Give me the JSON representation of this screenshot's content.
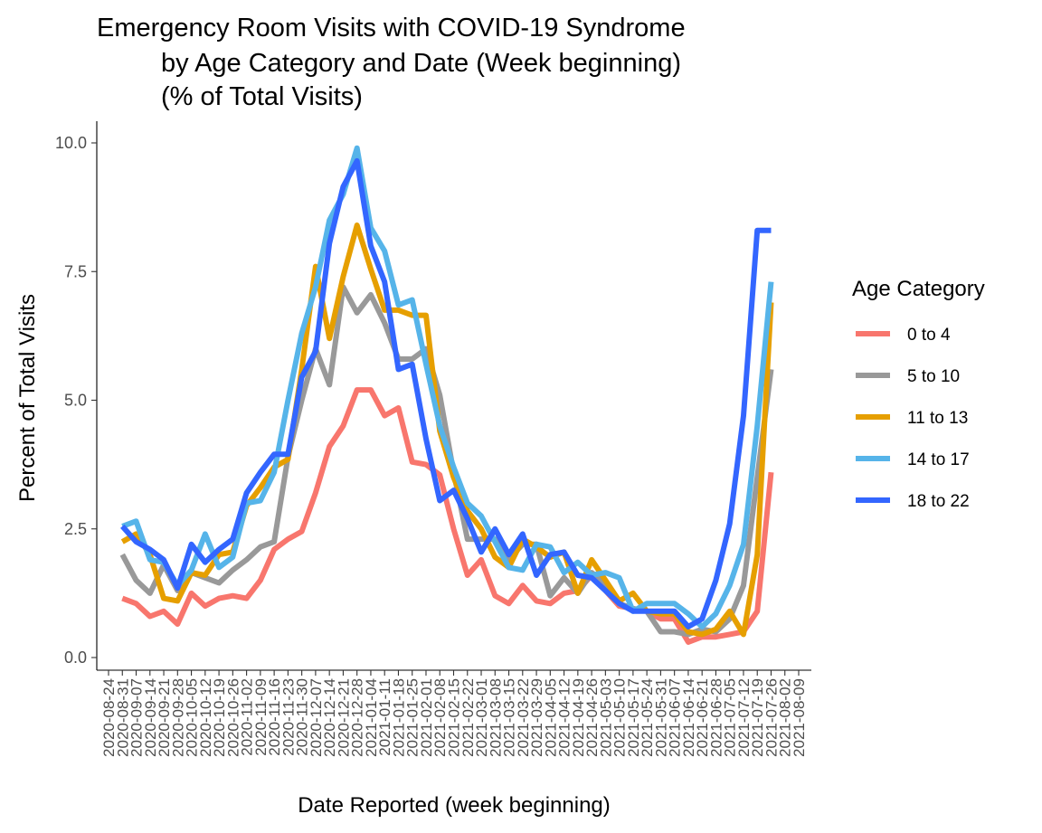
{
  "chart_data": {
    "type": "line",
    "title": [
      "Emergency Room Visits with COVID-19 Syndrome",
      "by Age Category and Date (Week beginning)",
      "(% of Total Visits)"
    ],
    "xlabel": "Date Reported (week beginning)",
    "ylabel": "Percent of Total Visits",
    "ylim": [
      0,
      10
    ],
    "yticks": [
      "0.0",
      "2.5",
      "5.0",
      "7.5",
      "10.0"
    ],
    "grid": false,
    "legend": {
      "title": "Age Category",
      "position": "right"
    },
    "x_tick_labels": [
      "2020-08-24",
      "2020-08-31",
      "2020-09-07",
      "2020-09-14",
      "2020-09-21",
      "2020-09-28",
      "2020-10-05",
      "2020-10-12",
      "2020-10-19",
      "2020-10-26",
      "2020-11-02",
      "2020-11-09",
      "2020-11-16",
      "2020-11-23",
      "2020-11-30",
      "2020-12-07",
      "2020-12-14",
      "2020-12-21",
      "2020-12-28",
      "2021-01-04",
      "2021-01-11",
      "2021-01-18",
      "2021-01-25",
      "2021-02-01",
      "2021-02-08",
      "2021-02-15",
      "2021-02-22",
      "2021-03-01",
      "2021-03-08",
      "2021-03-15",
      "2021-03-22",
      "2021-03-29",
      "2021-04-05",
      "2021-04-12",
      "2021-04-19",
      "2021-04-26",
      "2021-05-03",
      "2021-05-10",
      "2021-05-17",
      "2021-05-24",
      "2021-05-31",
      "2021-06-07",
      "2021-06-14",
      "2021-06-21",
      "2021-06-28",
      "2021-07-05",
      "2021-07-12",
      "2021-07-19",
      "2021-07-26",
      "2021-08-02",
      "2021-08-09"
    ],
    "x": [
      "2020-08-31",
      "2020-09-07",
      "2020-09-14",
      "2020-09-21",
      "2020-09-28",
      "2020-10-05",
      "2020-10-12",
      "2020-10-19",
      "2020-10-26",
      "2020-11-02",
      "2020-11-09",
      "2020-11-16",
      "2020-11-23",
      "2020-11-30",
      "2020-12-07",
      "2020-12-14",
      "2020-12-21",
      "2020-12-28",
      "2021-01-04",
      "2021-01-11",
      "2021-01-18",
      "2021-01-25",
      "2021-02-01",
      "2021-02-08",
      "2021-02-15",
      "2021-02-22",
      "2021-03-01",
      "2021-03-08",
      "2021-03-15",
      "2021-03-22",
      "2021-03-29",
      "2021-04-05",
      "2021-04-12",
      "2021-04-19",
      "2021-04-26",
      "2021-05-03",
      "2021-05-10",
      "2021-05-17",
      "2021-05-24",
      "2021-05-31",
      "2021-06-07",
      "2021-06-14",
      "2021-06-21",
      "2021-06-28",
      "2021-07-05",
      "2021-07-12",
      "2021-07-19",
      "2021-07-26"
    ],
    "series": [
      {
        "name": "0 to 4",
        "color": "#F8766D",
        "values": [
          1.15,
          1.05,
          0.8,
          0.9,
          0.65,
          1.25,
          1.0,
          1.15,
          1.2,
          1.15,
          1.5,
          2.1,
          2.3,
          2.45,
          3.2,
          4.1,
          4.5,
          5.2,
          5.2,
          4.7,
          4.85,
          3.8,
          3.75,
          3.55,
          2.5,
          1.6,
          1.9,
          1.2,
          1.05,
          1.4,
          1.1,
          1.05,
          1.25,
          1.3,
          1.6,
          1.3,
          1.0,
          0.95,
          0.9,
          0.75,
          0.75,
          0.3,
          0.4,
          0.4,
          0.45,
          0.5,
          0.9,
          3.6
        ]
      },
      {
        "name": "5 to 10",
        "color": "#999999",
        "values": [
          2.0,
          1.5,
          1.25,
          1.8,
          1.3,
          1.65,
          1.55,
          1.45,
          1.7,
          1.9,
          2.15,
          2.25,
          3.9,
          5.0,
          6.0,
          5.3,
          7.2,
          6.7,
          7.05,
          6.5,
          5.8,
          5.8,
          6.0,
          5.1,
          3.6,
          2.3,
          2.3,
          2.3,
          1.9,
          2.2,
          2.2,
          1.2,
          1.55,
          1.25,
          1.65,
          1.45,
          1.05,
          0.95,
          0.9,
          0.5,
          0.5,
          0.45,
          0.55,
          0.5,
          0.75,
          1.4,
          3.5,
          5.6
        ]
      },
      {
        "name": "11 to 13",
        "color": "#E69F00",
        "values": [
          2.25,
          2.4,
          2.0,
          1.15,
          1.1,
          1.65,
          1.6,
          2.0,
          2.05,
          2.95,
          3.3,
          3.7,
          3.85,
          5.6,
          7.6,
          6.2,
          7.4,
          8.4,
          7.55,
          6.75,
          6.75,
          6.65,
          6.65,
          4.4,
          3.5,
          2.85,
          2.5,
          1.95,
          1.75,
          2.3,
          2.15,
          1.95,
          2.05,
          1.25,
          1.9,
          1.5,
          1.1,
          1.25,
          0.9,
          0.85,
          0.85,
          0.5,
          0.45,
          0.55,
          0.9,
          0.45,
          2.0,
          6.9
        ]
      },
      {
        "name": "14 to 17",
        "color": "#56B4E9",
        "values": [
          2.55,
          2.65,
          1.9,
          1.85,
          1.4,
          1.7,
          2.4,
          1.75,
          1.95,
          3.0,
          3.05,
          3.6,
          5.0,
          6.3,
          7.2,
          8.5,
          9.0,
          9.9,
          8.35,
          7.9,
          6.85,
          6.95,
          5.7,
          4.5,
          3.7,
          3.0,
          2.75,
          2.25,
          1.75,
          1.7,
          2.2,
          2.15,
          1.65,
          1.85,
          1.6,
          1.65,
          1.55,
          0.9,
          1.05,
          1.05,
          1.05,
          0.85,
          0.6,
          0.85,
          1.4,
          2.2,
          4.5,
          7.3
        ]
      },
      {
        "name": "18 to 22",
        "color": "#3366FF",
        "values": [
          2.55,
          2.25,
          2.1,
          1.9,
          1.35,
          2.2,
          1.85,
          2.1,
          2.3,
          3.2,
          3.6,
          3.95,
          3.95,
          5.45,
          5.95,
          8.05,
          9.15,
          9.65,
          8.0,
          7.3,
          5.6,
          5.7,
          4.25,
          3.05,
          3.25,
          2.7,
          2.05,
          2.5,
          2.0,
          2.4,
          1.6,
          2.0,
          2.05,
          1.6,
          1.55,
          1.3,
          1.05,
          0.9,
          0.9,
          0.9,
          0.9,
          0.6,
          0.75,
          1.5,
          2.6,
          4.7,
          8.3,
          8.3
        ]
      }
    ]
  }
}
